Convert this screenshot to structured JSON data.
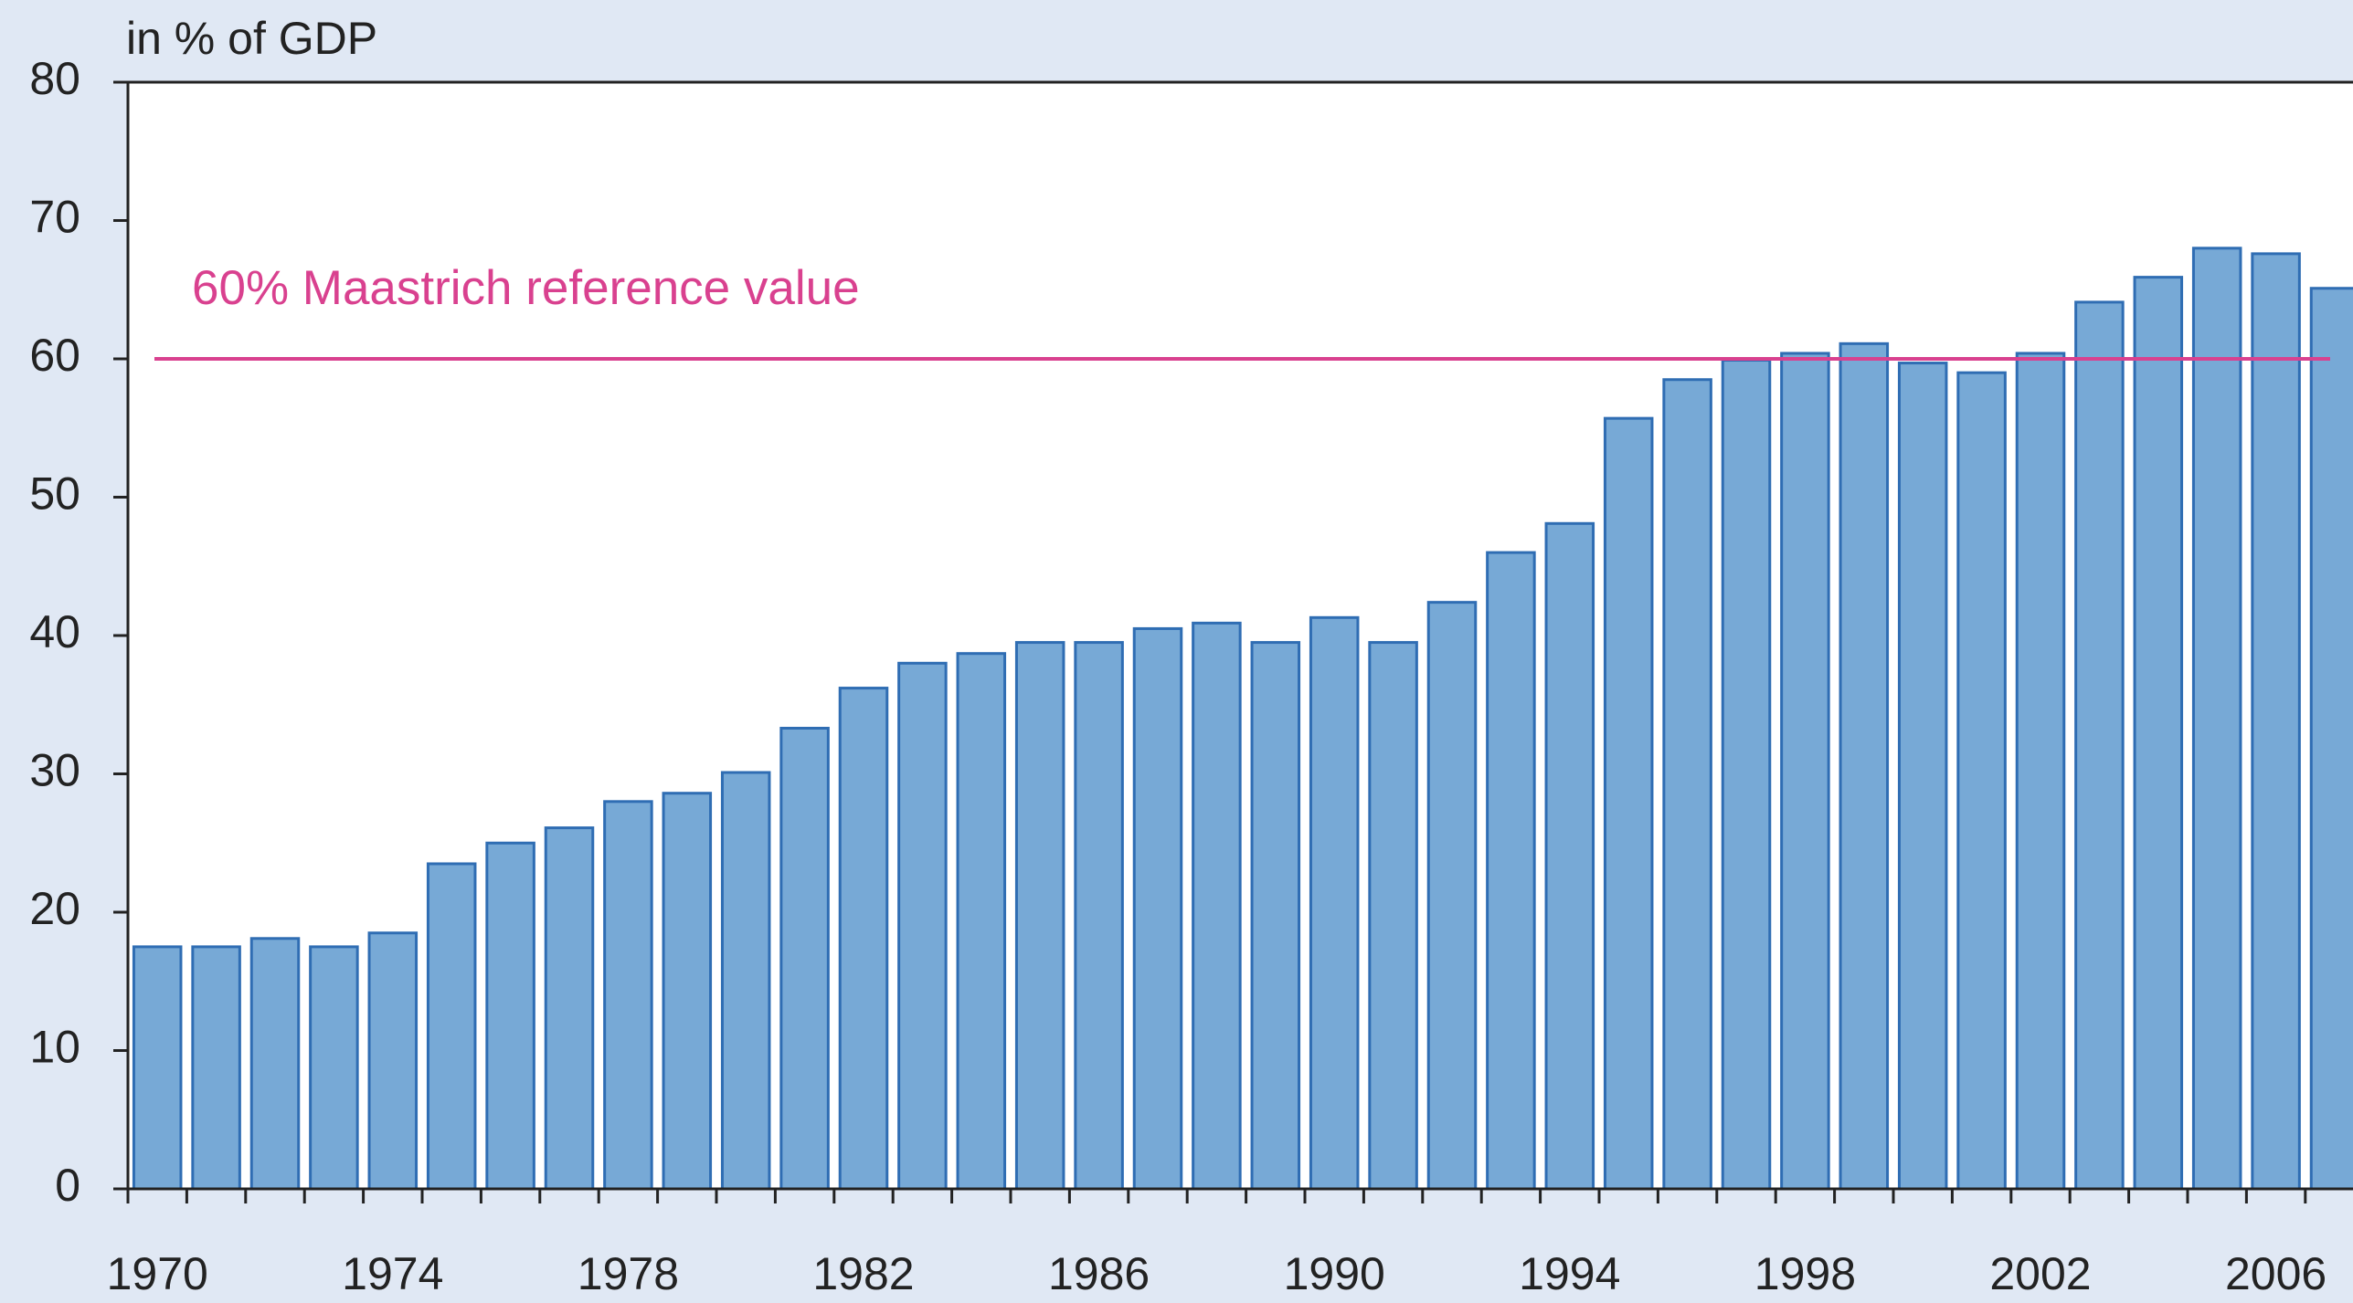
{
  "chart_data": {
    "type": "bar",
    "y_axis_label": "in % of GDP",
    "categories": [
      "1970",
      null,
      null,
      null,
      "1974",
      null,
      null,
      null,
      "1978",
      null,
      null,
      null,
      "1982",
      null,
      null,
      null,
      "1986",
      null,
      null,
      null,
      "1990",
      null,
      null,
      null,
      "1994",
      null,
      null,
      null,
      "1998",
      null,
      null,
      null,
      "2002",
      null,
      null,
      null,
      "2006",
      null
    ],
    "values": [
      17.5,
      17.5,
      18.1,
      17.5,
      18.5,
      23.5,
      25.0,
      26.1,
      28.0,
      28.6,
      30.1,
      33.3,
      36.2,
      38.0,
      38.7,
      39.5,
      39.5,
      40.5,
      40.9,
      39.5,
      41.3,
      39.5,
      42.4,
      46.0,
      48.1,
      55.7,
      58.5,
      59.9,
      60.4,
      61.1,
      59.7,
      59.0,
      60.4,
      64.1,
      65.9,
      68.0,
      67.6,
      65.1
    ],
    "color": "#77a9d6",
    "edge_color": "#2f6db3",
    "ylim": [
      0,
      80
    ],
    "yticks": [
      0,
      10,
      20,
      30,
      40,
      50,
      60,
      70,
      80
    ],
    "grid": false,
    "reference_line": {
      "value": 60,
      "label": "60% Maastrich reference value",
      "color": "#d9418f"
    }
  }
}
